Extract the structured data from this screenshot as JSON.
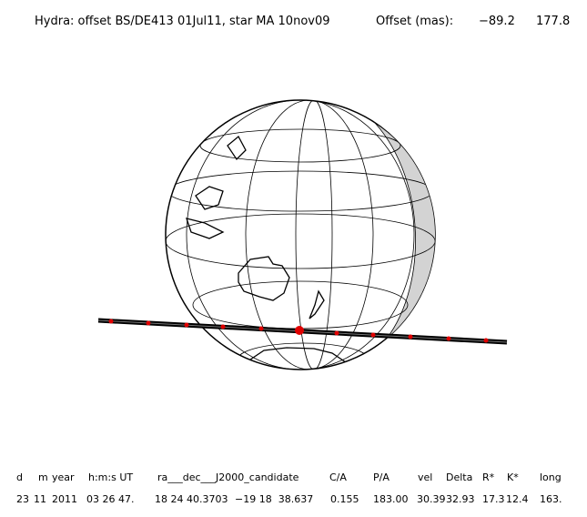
{
  "header": {
    "title": "Hydra: offset BS/DE413 01Jul11, star MA 10nov09",
    "offset_label": "Offset (mas):",
    "offset_values": [
      "−89.2",
      "177.8"
    ]
  },
  "table": {
    "columns": [
      "d",
      "m",
      "year",
      "h:m:s UT",
      "ra___dec___J2000_candidate",
      "C/A",
      "P/A",
      "vel",
      "Delta",
      "R*",
      "K*",
      "long"
    ],
    "rows": [
      [
        "23",
        "11",
        "2011",
        "03 26 47.",
        "18 24 40.3703",
        "−19 18  38.637",
        "0.155",
        "183.00",
        "30.39",
        "32.93",
        "17.3",
        "12.4",
        "163."
      ]
    ]
  }
}
